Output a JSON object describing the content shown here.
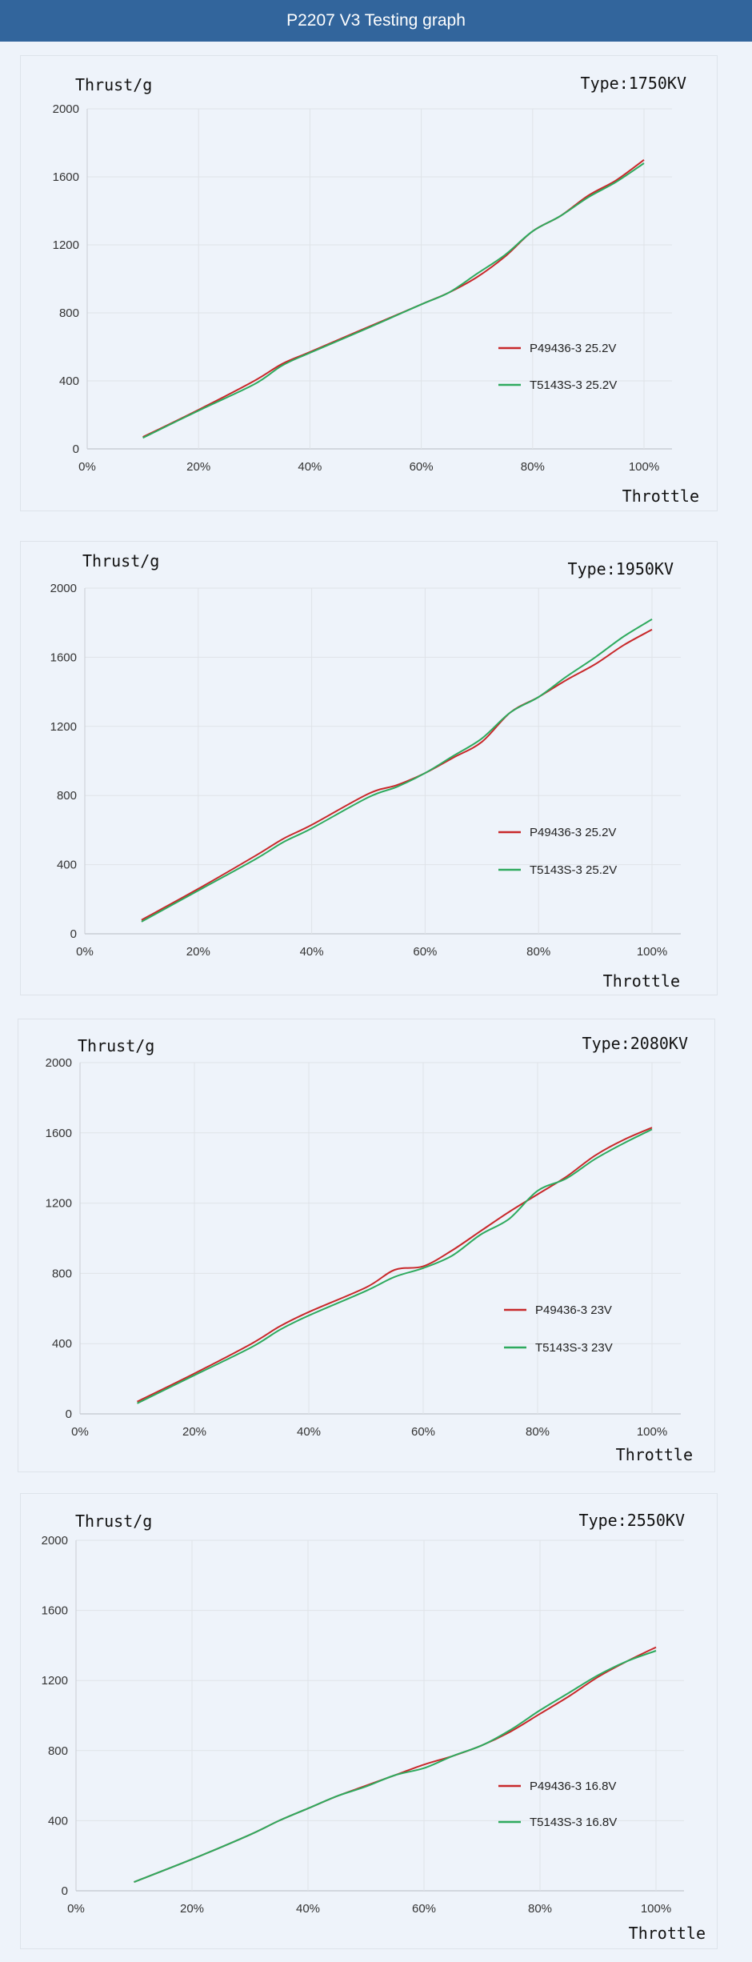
{
  "header": {
    "title": "P2207 V3 Testing graph",
    "background": "#32659c"
  },
  "colors": {
    "series_red": "#c8282a",
    "series_green": "#2eaa5e",
    "grid": "#dfe3e8",
    "axis": "#c9ced4"
  },
  "chart_data": [
    {
      "type": "line",
      "title": "Type:1750KV",
      "ylabel": "Thrust/g",
      "xlabel": "Throttle",
      "xlim": [
        0,
        100
      ],
      "ylim": [
        0,
        2000
      ],
      "x_ticks": [
        "0%",
        "20%",
        "40%",
        "60%",
        "80%",
        "100%"
      ],
      "y_ticks": [
        "0",
        "400",
        "800",
        "1200",
        "1600",
        "2000"
      ],
      "grid": true,
      "legend_position": "center-right",
      "x": [
        10,
        20,
        30,
        35,
        40,
        50,
        60,
        65,
        70,
        75,
        80,
        85,
        90,
        95,
        100
      ],
      "series": [
        {
          "name": "P49436-3 25.2V",
          "color": "red",
          "values": [
            70,
            230,
            400,
            500,
            570,
            710,
            850,
            920,
            1010,
            1130,
            1280,
            1370,
            1490,
            1580,
            1700
          ]
        },
        {
          "name": "T5143S-3 25.2V",
          "color": "green",
          "values": [
            65,
            225,
            380,
            490,
            565,
            705,
            850,
            920,
            1030,
            1140,
            1280,
            1370,
            1480,
            1570,
            1680
          ]
        }
      ]
    },
    {
      "type": "line",
      "title": "Type:1950KV",
      "ylabel": "Thrust/g",
      "xlabel": "Throttle",
      "xlim": [
        0,
        100
      ],
      "ylim": [
        0,
        2000
      ],
      "x_ticks": [
        "0%",
        "20%",
        "40%",
        "60%",
        "80%",
        "100%"
      ],
      "y_ticks": [
        "0",
        "400",
        "800",
        "1200",
        "1600",
        "2000"
      ],
      "grid": true,
      "legend_position": "center-right",
      "x": [
        10,
        20,
        30,
        35,
        40,
        50,
        55,
        60,
        65,
        70,
        75,
        80,
        85,
        90,
        95,
        100
      ],
      "series": [
        {
          "name": "P49436-3 25.2V",
          "color": "red",
          "values": [
            80,
            260,
            450,
            550,
            630,
            810,
            860,
            930,
            1020,
            1110,
            1280,
            1370,
            1470,
            1560,
            1670,
            1760
          ]
        },
        {
          "name": "T5143S-3 25.2V",
          "color": "green",
          "values": [
            70,
            250,
            430,
            530,
            610,
            790,
            850,
            930,
            1030,
            1130,
            1280,
            1370,
            1490,
            1600,
            1720,
            1820
          ]
        }
      ]
    },
    {
      "type": "line",
      "title": "Type:2080KV",
      "ylabel": "Thrust/g",
      "xlabel": "Throttle",
      "xlim": [
        0,
        100
      ],
      "ylim": [
        0,
        2000
      ],
      "x_ticks": [
        "0%",
        "20%",
        "40%",
        "60%",
        "80%",
        "100%"
      ],
      "y_ticks": [
        "0",
        "400",
        "800",
        "1200",
        "1600",
        "2000"
      ],
      "grid": true,
      "legend_position": "center-right",
      "x": [
        10,
        20,
        30,
        35,
        40,
        50,
        55,
        60,
        65,
        70,
        75,
        80,
        85,
        90,
        95,
        100
      ],
      "series": [
        {
          "name": "P49436-3 23V",
          "color": "red",
          "values": [
            70,
            230,
            400,
            500,
            580,
            720,
            820,
            840,
            930,
            1040,
            1150,
            1250,
            1350,
            1470,
            1560,
            1630
          ]
        },
        {
          "name": "T5143S-3 23V",
          "color": "green",
          "values": [
            60,
            220,
            380,
            480,
            560,
            700,
            780,
            830,
            900,
            1020,
            1110,
            1270,
            1340,
            1450,
            1540,
            1620
          ]
        }
      ]
    },
    {
      "type": "line",
      "title": "Type:2550KV",
      "ylabel": "Thrust/g",
      "xlabel": "Throttle",
      "xlim": [
        0,
        100
      ],
      "ylim": [
        0,
        2000
      ],
      "x_ticks": [
        "0%",
        "20%",
        "40%",
        "60%",
        "80%",
        "100%"
      ],
      "y_ticks": [
        "0",
        "400",
        "800",
        "1200",
        "1600",
        "2000"
      ],
      "grid": true,
      "legend_position": "center-right",
      "x": [
        10,
        20,
        30,
        35,
        40,
        45,
        50,
        55,
        60,
        65,
        70,
        75,
        80,
        85,
        90,
        95,
        100
      ],
      "series": [
        {
          "name": "P49436-3 16.8V",
          "color": "red",
          "values": [
            50,
            180,
            320,
            400,
            470,
            540,
            600,
            660,
            720,
            770,
            830,
            910,
            1010,
            1110,
            1220,
            1310,
            1390
          ]
        },
        {
          "name": "T5143S-3 16.8V",
          "color": "green",
          "values": [
            50,
            180,
            320,
            400,
            470,
            540,
            595,
            660,
            700,
            770,
            830,
            920,
            1030,
            1130,
            1230,
            1310,
            1370
          ]
        }
      ]
    }
  ]
}
